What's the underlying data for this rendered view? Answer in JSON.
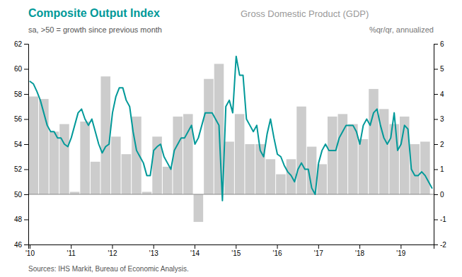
{
  "chart_data": {
    "type": "combo",
    "title": "Composite Output Index",
    "subtitle": "sa, >50 = growth since previous month",
    "title_right": "Gross Domestic Product (GDP)",
    "subtitle_right": "%qr/qr, annualized",
    "source": "Sources: IHS Markit, Bureau of Economic Analysis.",
    "grid": false,
    "categories": [
      "'10",
      null,
      null,
      null,
      null,
      null,
      null,
      null,
      null,
      null,
      null,
      null,
      "'11",
      null,
      null,
      null,
      null,
      null,
      null,
      null,
      null,
      null,
      null,
      null,
      "'12",
      null,
      null,
      null,
      null,
      null,
      null,
      null,
      null,
      null,
      null,
      null,
      "'13",
      null,
      null,
      null,
      null,
      null,
      null,
      null,
      null,
      null,
      null,
      null,
      "'14",
      null,
      null,
      null,
      null,
      null,
      null,
      null,
      null,
      null,
      null,
      null,
      "'15",
      null,
      null,
      null,
      null,
      null,
      null,
      null,
      null,
      null,
      null,
      null,
      "'16",
      null,
      null,
      null,
      null,
      null,
      null,
      null,
      null,
      null,
      null,
      null,
      "'17",
      null,
      null,
      null,
      null,
      null,
      null,
      null,
      null,
      null,
      null,
      null,
      "'18",
      null,
      null,
      null,
      null,
      null,
      null,
      null,
      null,
      null,
      null,
      null,
      "'19",
      null,
      null,
      null,
      null,
      null,
      null,
      null,
      null,
      null
    ],
    "ylim": [
      46,
      62
    ],
    "yticks": [
      46,
      48,
      50,
      52,
      54,
      56,
      58,
      60,
      62
    ],
    "y2lim": [
      -2,
      6
    ],
    "y2ticks": [
      -2,
      -1,
      0,
      1,
      2,
      3,
      4,
      5,
      6
    ],
    "hline": 50,
    "series": [
      {
        "type": "bar",
        "axis": "y2",
        "color": "#cccccc",
        "values": [
          null,
          3.9,
          null,
          null,
          3.8,
          null,
          null,
          2.5,
          null,
          null,
          2.8,
          null,
          null,
          0.1,
          null,
          null,
          2.9,
          null,
          null,
          1.3,
          null,
          null,
          4.7,
          null,
          null,
          2.3,
          null,
          null,
          1.6,
          null,
          null,
          3.1,
          null,
          null,
          0.1,
          null,
          null,
          2.3,
          null,
          null,
          1.1,
          null,
          null,
          3.1,
          null,
          null,
          3.2,
          null,
          null,
          -1.1,
          null,
          null,
          4.6,
          null,
          null,
          5.2,
          null,
          null,
          2.1,
          null,
          null,
          3.2,
          null,
          null,
          2.0,
          null,
          null,
          2.0,
          null,
          null,
          1.4,
          null,
          null,
          0.8,
          null,
          null,
          1.4,
          null,
          null,
          3.5,
          null,
          null,
          1.9,
          null,
          null,
          1.2,
          null,
          null,
          3.1,
          null,
          null,
          3.2,
          null,
          null,
          2.8,
          null,
          null,
          2.2,
          null,
          null,
          4.2,
          null,
          null,
          3.4,
          null,
          null,
          2.8,
          null,
          null,
          3.1,
          null,
          null,
          2.0,
          null,
          null,
          2.1,
          null,
          null
        ]
      },
      {
        "type": "line",
        "axis": "y",
        "color": "#009999",
        "values": [
          59.0,
          58.8,
          58.2,
          57.5,
          56.5,
          55.5,
          55.0,
          55.0,
          54.5,
          54.5,
          54.0,
          53.8,
          54.5,
          55.5,
          56.5,
          56.8,
          56.0,
          55.5,
          56.0,
          55.0,
          54.0,
          53.3,
          53.8,
          54.0,
          56.5,
          57.8,
          58.5,
          58.5,
          57.5,
          57.0,
          55.0,
          53.5,
          53.0,
          52.5,
          51.5,
          51.5,
          53.5,
          53.8,
          54.0,
          53.0,
          52.5,
          52.0,
          53.5,
          54.0,
          54.5,
          54.5,
          55.0,
          55.5,
          54.0,
          54.5,
          55.5,
          56.5,
          56.5,
          56.5,
          56.0,
          55.5,
          49.5,
          57.0,
          57.5,
          56.5,
          61.0,
          59.5,
          59.5,
          56.0,
          55.5,
          55.0,
          55.5,
          53.5,
          53.0,
          54.8,
          56.0,
          54.5,
          53.2,
          53.0,
          52.3,
          51.8,
          51.5,
          51.0,
          52.0,
          52.5,
          52.0,
          52.0,
          50.5,
          50.0,
          52.5,
          53.5,
          54.0,
          53.5,
          53.5,
          53.5,
          54.5,
          55.0,
          55.5,
          55.5,
          55.5,
          55.0,
          54.0,
          55.5,
          56.0,
          55.5,
          56.5,
          56.8,
          55.5,
          54.5,
          54.0,
          54.5,
          56.5,
          53.5,
          54.0,
          55.5,
          55.2,
          52.0,
          51.5,
          51.5,
          51.8,
          51.5,
          51.0,
          50.5
        ]
      }
    ]
  }
}
